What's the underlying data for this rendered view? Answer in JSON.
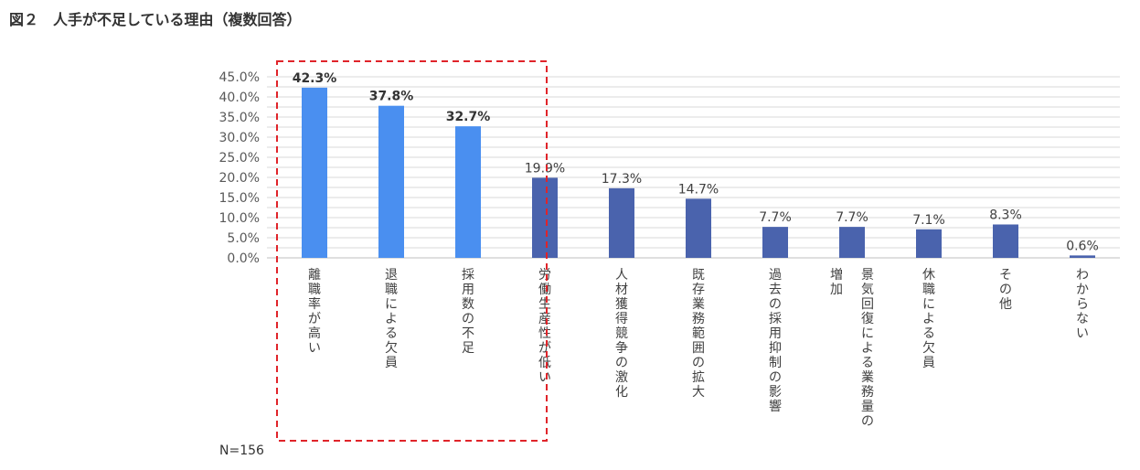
{
  "title": "図２　人手が不足している理由（複数回答）",
  "note": "N=156",
  "chart_data": {
    "type": "bar",
    "title": "",
    "xlabel": "",
    "ylabel": "",
    "ylim": [
      0,
      45
    ],
    "y_ticks": [
      "0.0%",
      "5.0%",
      "10.0%",
      "15.0%",
      "20.0%",
      "25.0%",
      "30.0%",
      "35.0%",
      "40.0%",
      "45.0%"
    ],
    "grid": true,
    "categories": [
      "離職率が高い",
      "退職による欠員",
      "採用数の不足",
      "労働生産性が低い",
      "人材獲得競争の激化",
      "既存業務範囲の拡大",
      "過去の採用抑制の影響",
      "景気回復による業務量の増加",
      "休職による欠員",
      "その他",
      "わからない"
    ],
    "values": [
      42.3,
      37.8,
      32.7,
      19.9,
      17.3,
      14.7,
      7.7,
      7.7,
      7.1,
      8.3,
      0.6
    ],
    "data_labels": [
      "42.3%",
      "37.8%",
      "32.7%",
      "19.9%",
      "17.3%",
      "14.7%",
      "7.7%",
      "7.7%",
      "7.1%",
      "8.3%",
      "0.6%"
    ],
    "highlighted": [
      true,
      true,
      true,
      false,
      false,
      false,
      false,
      false,
      false,
      false,
      false
    ],
    "colors": {
      "highlight": "#4a8ff0",
      "normal": "#4a63ad",
      "frame": "#e0242a",
      "grid": "#d9d9d9"
    }
  }
}
